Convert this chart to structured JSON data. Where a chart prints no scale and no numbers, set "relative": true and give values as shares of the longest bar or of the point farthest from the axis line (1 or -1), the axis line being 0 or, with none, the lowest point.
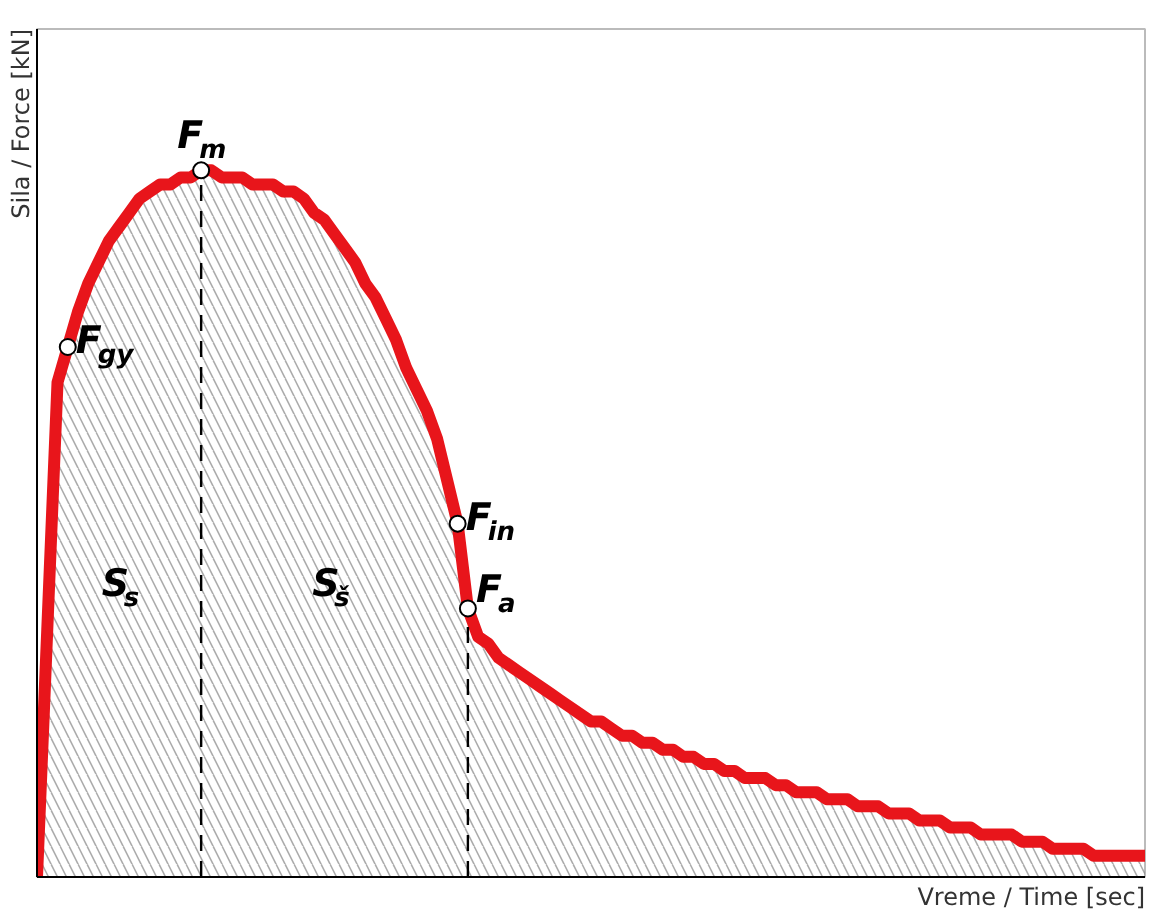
{
  "chart_data": {
    "type": "area",
    "relative": true,
    "xlabel": "Vreme / Time [sec]",
    "ylabel": "Sila / Force [kN]",
    "categories": [
      null,
      null,
      null,
      null,
      null,
      null,
      null,
      null,
      null,
      null,
      null,
      null,
      null,
      null,
      null,
      null,
      null,
      null,
      null,
      null,
      null,
      null,
      null,
      null,
      null,
      null,
      null,
      null,
      null,
      null,
      null,
      null,
      null,
      null,
      null,
      null,
      null,
      null,
      null,
      null,
      null,
      null,
      null,
      null,
      null,
      null,
      null,
      null,
      null,
      null,
      null,
      null,
      null,
      null,
      null,
      null,
      null,
      null,
      null,
      null,
      null,
      null,
      null,
      null,
      null,
      null,
      null,
      null,
      null,
      null,
      null,
      null,
      null,
      null,
      null,
      null,
      null,
      null,
      null,
      null,
      null,
      null,
      null,
      null,
      null,
      null,
      null,
      null,
      null,
      null,
      null,
      null,
      null,
      null,
      null,
      null,
      null,
      null,
      null,
      null,
      null,
      null,
      null,
      null,
      null,
      null,
      null,
      null,
      null
    ],
    "series": [
      {
        "color": "#e8151b",
        "values": [
          0,
          0.35,
          0.7,
          0.75,
          0.8,
          0.84,
          0.87,
          0.9,
          0.92,
          0.94,
          0.96,
          0.97,
          0.98,
          0.98,
          0.99,
          0.99,
          1,
          1,
          0.99,
          0.99,
          0.99,
          0.98,
          0.98,
          0.98,
          0.97,
          0.97,
          0.96,
          0.94,
          0.93,
          0.91,
          0.89,
          0.87,
          0.84,
          0.82,
          0.79,
          0.76,
          0.72,
          0.69,
          0.66,
          0.62,
          0.56,
          0.5,
          0.38,
          0.34,
          0.33,
          0.31,
          0.3,
          0.29,
          0.28,
          0.27,
          0.26,
          0.25,
          0.24,
          0.23,
          0.22,
          0.22,
          0.21,
          0.2,
          0.2,
          0.19,
          0.19,
          0.18,
          0.18,
          0.17,
          0.17,
          0.16,
          0.16,
          0.15,
          0.15,
          0.14,
          0.14,
          0.14,
          0.13,
          0.13,
          0.12,
          0.12,
          0.12,
          0.11,
          0.11,
          0.11,
          0.1,
          0.1,
          0.1,
          0.09,
          0.09,
          0.09,
          0.08,
          0.08,
          0.08,
          0.07,
          0.07,
          0.07,
          0.06,
          0.06,
          0.06,
          0.06,
          0.05,
          0.05,
          0.05,
          0.04,
          0.04,
          0.04,
          0.04,
          0.03,
          0.03,
          0.03,
          0.03,
          0.03,
          0.03
        ]
      }
    ],
    "annotations": [
      "F$_{gy}$",
      "F$_{m}$",
      "F$_{in}$",
      "F$_{a}$",
      "S$_{s}$",
      "S$_{š}$"
    ]
  }
}
